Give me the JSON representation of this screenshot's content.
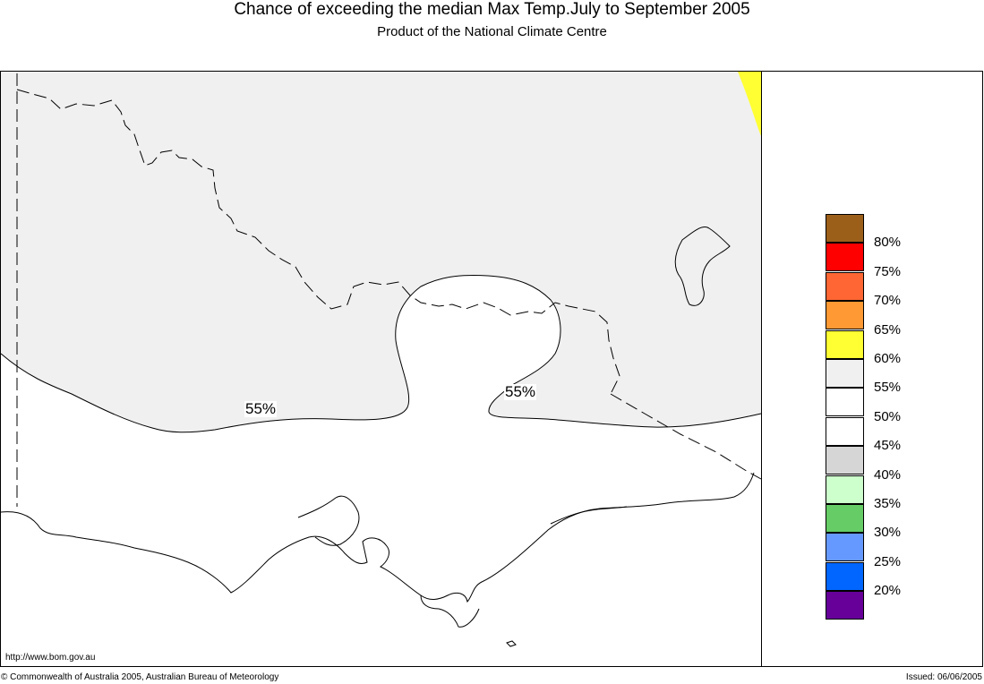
{
  "header": {
    "title": "Chance of exceeding the median Max Temp.July to September 2005",
    "subtitle": "Product of the National Climate Centre"
  },
  "map": {
    "contour_labels": [
      "55%",
      "55%"
    ],
    "colors": {
      "region_55_60": "#f0f0f0",
      "region_60_65": "#ffff33",
      "background": "#ffffff",
      "coastline": "#000000"
    }
  },
  "legend": {
    "items": [
      {
        "label": "80%",
        "color": "#9c5f1a"
      },
      {
        "label": "75%",
        "color": "#ff0000"
      },
      {
        "label": "70%",
        "color": "#ff6633"
      },
      {
        "label": "65%",
        "color": "#ff9933"
      },
      {
        "label": "60%",
        "color": "#ffff33"
      },
      {
        "label": "55%",
        "color": "#f0f0f0"
      },
      {
        "label": "50%",
        "color": "#ffffff"
      },
      {
        "label": "45%",
        "color": "#ffffff"
      },
      {
        "label": "40%",
        "color": "#d6d6d6"
      },
      {
        "label": "35%",
        "color": "#ccffcc"
      },
      {
        "label": "30%",
        "color": "#66cc66"
      },
      {
        "label": "25%",
        "color": "#6699ff"
      },
      {
        "label": "20%",
        "color": "#0066ff"
      },
      {
        "label": "",
        "color": "#660099"
      }
    ]
  },
  "footer": {
    "url": "http://www.bom.gov.au",
    "copyright": "© Commonwealth of Australia 2005, Australian Bureau of Meteorology",
    "issued": "Issued: 06/06/2005"
  }
}
